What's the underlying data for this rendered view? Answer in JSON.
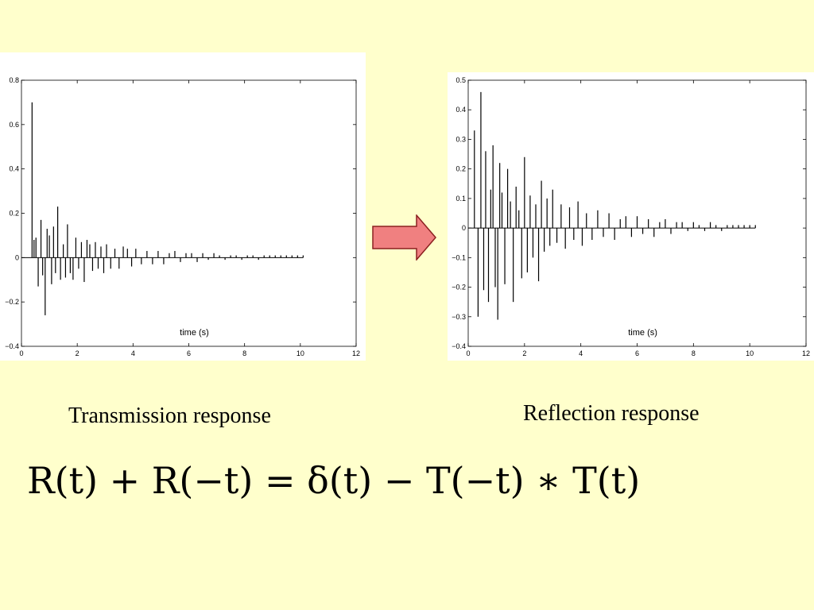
{
  "chart_data": [
    {
      "type": "bar",
      "xlabel": "time (s)",
      "ylabel": "",
      "xlim": [
        0,
        12
      ],
      "ylim": [
        -0.4,
        0.8
      ],
      "xticks": [
        0,
        2,
        4,
        6,
        8,
        10,
        12
      ],
      "yticks": [
        -0.4,
        -0.2,
        0,
        0.2,
        0.4,
        0.6,
        0.8
      ],
      "ytick_labels": [
        "−0.4",
        "−0.2",
        "0",
        "0.2",
        "0.4",
        "0.6",
        "0.8"
      ],
      "grid": false,
      "legend": "none",
      "x": [
        0.38,
        0.45,
        0.52,
        0.6,
        0.7,
        0.76,
        0.85,
        0.92,
        1.0,
        1.08,
        1.15,
        1.22,
        1.3,
        1.4,
        1.5,
        1.58,
        1.65,
        1.75,
        1.85,
        1.95,
        2.05,
        2.15,
        2.25,
        2.35,
        2.45,
        2.55,
        2.65,
        2.75,
        2.85,
        2.95,
        3.05,
        3.2,
        3.35,
        3.5,
        3.65,
        3.8,
        3.95,
        4.1,
        4.3,
        4.5,
        4.7,
        4.9,
        5.1,
        5.3,
        5.5,
        5.7,
        5.9,
        6.1,
        6.3,
        6.5,
        6.7,
        6.9,
        7.1,
        7.3,
        7.5,
        7.7,
        7.9,
        8.1,
        8.3,
        8.5,
        8.7,
        8.9,
        9.1,
        9.3,
        9.5,
        9.7,
        9.9,
        10.1
      ],
      "values": [
        0.7,
        0.08,
        0.09,
        -0.13,
        0.17,
        -0.08,
        -0.26,
        0.13,
        0.1,
        -0.12,
        0.14,
        -0.07,
        0.23,
        -0.1,
        0.06,
        -0.09,
        0.15,
        -0.07,
        -0.1,
        0.09,
        -0.05,
        0.07,
        -0.11,
        0.08,
        0.06,
        -0.06,
        0.07,
        -0.05,
        0.05,
        -0.07,
        0.06,
        -0.05,
        0.04,
        -0.05,
        0.05,
        0.04,
        -0.04,
        0.04,
        -0.03,
        0.03,
        -0.03,
        0.03,
        -0.03,
        0.02,
        0.03,
        -0.02,
        0.02,
        0.02,
        -0.02,
        0.02,
        -0.01,
        0.02,
        0.01,
        -0.01,
        0.01,
        0.01,
        -0.01,
        0.01,
        0.01,
        -0.01,
        0.01,
        0.01,
        0.01,
        0.01,
        0.01,
        0.01,
        0.01,
        0.01
      ]
    },
    {
      "type": "bar",
      "xlabel": "time (s)",
      "ylabel": "",
      "xlim": [
        0,
        12
      ],
      "ylim": [
        -0.4,
        0.5
      ],
      "xticks": [
        0,
        2,
        4,
        6,
        8,
        10,
        12
      ],
      "yticks": [
        -0.4,
        -0.3,
        -0.2,
        -0.1,
        0,
        0.1,
        0.2,
        0.3,
        0.4,
        0.5
      ],
      "ytick_labels": [
        "−0.4",
        "−0.3",
        "−0.2",
        "−0.1",
        "0",
        "0.1",
        "0.2",
        "0.3",
        "0.4",
        "0.5"
      ],
      "grid": false,
      "legend": "none",
      "x": [
        0.22,
        0.35,
        0.45,
        0.55,
        0.62,
        0.72,
        0.8,
        0.88,
        0.96,
        1.05,
        1.12,
        1.2,
        1.3,
        1.4,
        1.5,
        1.6,
        1.7,
        1.8,
        1.9,
        2.0,
        2.1,
        2.2,
        2.3,
        2.4,
        2.5,
        2.6,
        2.7,
        2.8,
        2.9,
        3.0,
        3.15,
        3.3,
        3.45,
        3.6,
        3.75,
        3.9,
        4.05,
        4.2,
        4.4,
        4.6,
        4.8,
        5.0,
        5.2,
        5.4,
        5.6,
        5.8,
        6.0,
        6.2,
        6.4,
        6.6,
        6.8,
        7.0,
        7.2,
        7.4,
        7.6,
        7.8,
        8.0,
        8.2,
        8.4,
        8.6,
        8.8,
        9.0,
        9.2,
        9.4,
        9.6,
        9.8,
        10.0,
        10.2
      ],
      "values": [
        0.33,
        -0.3,
        0.46,
        -0.21,
        0.26,
        -0.25,
        0.13,
        0.28,
        -0.2,
        -0.31,
        0.22,
        0.12,
        -0.19,
        0.2,
        0.09,
        -0.25,
        0.14,
        0.06,
        -0.17,
        0.24,
        -0.15,
        0.11,
        -0.1,
        0.08,
        -0.18,
        0.16,
        -0.08,
        0.1,
        -0.06,
        0.13,
        -0.05,
        0.08,
        -0.07,
        0.07,
        -0.04,
        0.09,
        -0.06,
        0.05,
        -0.04,
        0.06,
        -0.03,
        0.05,
        -0.04,
        0.03,
        0.04,
        -0.03,
        0.04,
        -0.02,
        0.03,
        -0.03,
        0.02,
        0.03,
        -0.02,
        0.02,
        0.02,
        -0.01,
        0.02,
        0.01,
        -0.01,
        0.02,
        0.01,
        -0.01,
        0.01,
        0.01,
        0.01,
        0.01,
        0.01,
        0.01
      ]
    }
  ],
  "captions": {
    "left": "Transmission response",
    "right": "Reflection response"
  },
  "formula": "R(t) + R(−t) = δ(t) − T(−t) ∗ T(t)",
  "colors": {
    "background": "#ffffcc",
    "arrow_fill": "#f08080",
    "stem": "#000000"
  }
}
